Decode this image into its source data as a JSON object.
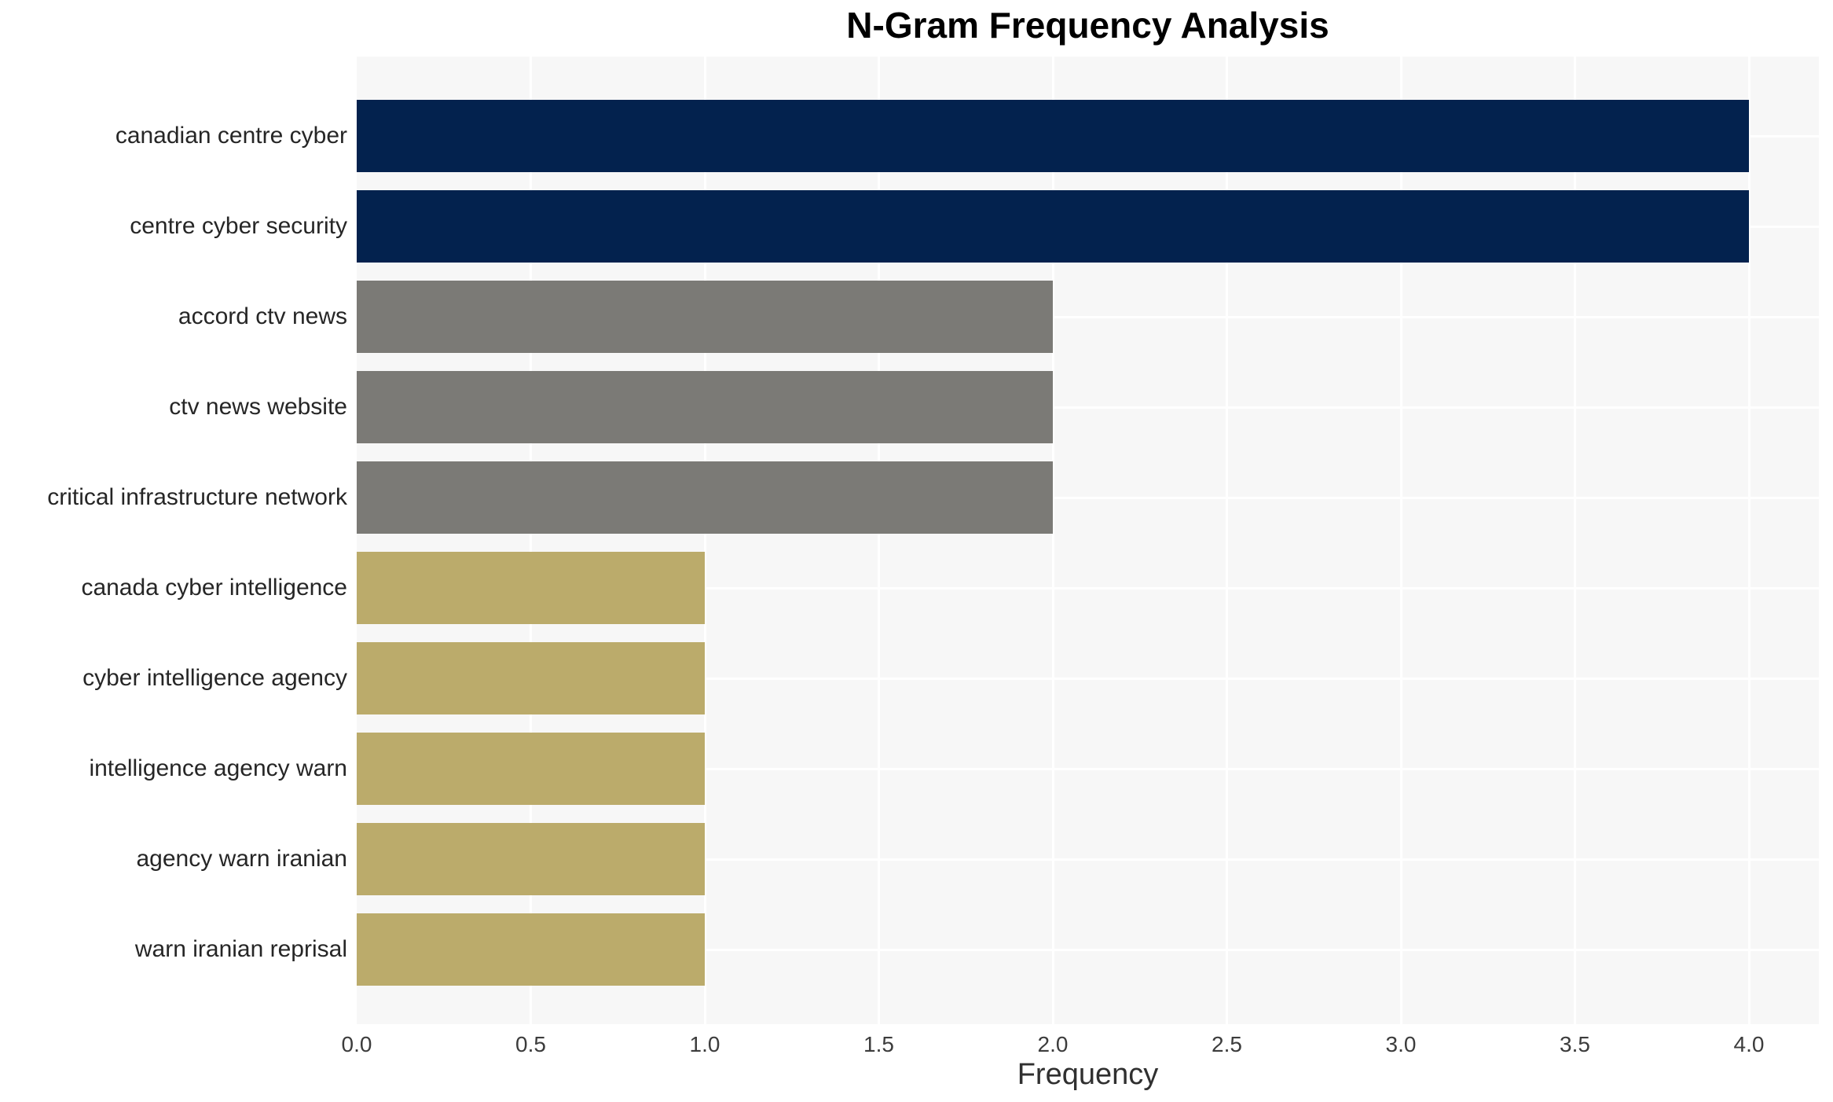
{
  "chart_data": {
    "type": "bar",
    "orientation": "horizontal",
    "title": "N-Gram Frequency Analysis",
    "xlabel": "Frequency",
    "ylabel": "",
    "xlim": [
      0,
      4.2
    ],
    "grid": true,
    "legend": false,
    "x_tick_labels": [
      "0.0",
      "0.5",
      "1.0",
      "1.5",
      "2.0",
      "2.5",
      "3.0",
      "3.5",
      "4.0"
    ],
    "categories": [
      "canadian centre cyber",
      "centre cyber security",
      "accord ctv news",
      "ctv news website",
      "critical infrastructure network",
      "canada cyber intelligence",
      "cyber intelligence agency",
      "intelligence agency warn",
      "agency warn iranian",
      "warn iranian reprisal"
    ],
    "values": [
      4,
      4,
      2,
      2,
      2,
      1,
      1,
      1,
      1,
      1
    ],
    "bar_colors": [
      "#03224e",
      "#03224e",
      "#7b7a76",
      "#7b7a76",
      "#7b7a76",
      "#bbab6b",
      "#bbab6b",
      "#bbab6b",
      "#bbab6b",
      "#bbab6b"
    ],
    "colors": {
      "plot_background": "#f7f7f7",
      "grid": "#ffffff",
      "freq_4": "#03224e",
      "freq_2": "#7b7a76",
      "freq_1": "#bbab6b",
      "title_text": "#000000",
      "label_text": "#262626",
      "tick_text": "#3c3c3c"
    }
  }
}
